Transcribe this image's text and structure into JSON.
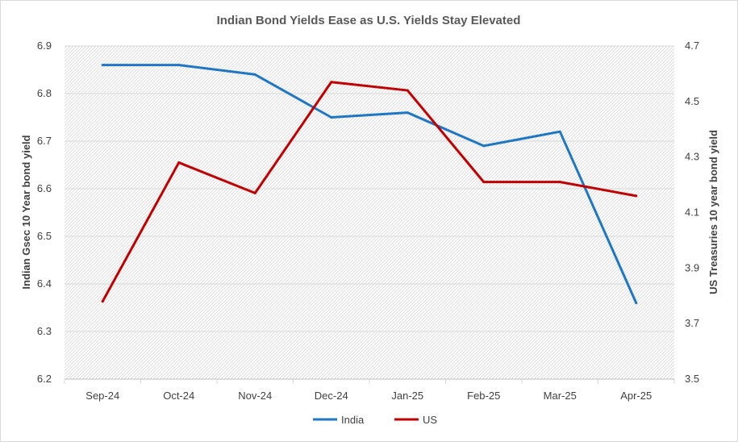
{
  "chart_data": {
    "type": "line",
    "title": "Indian Bond Yields Ease as U.S. Yields Stay Elevated",
    "categories": [
      "Sep-24",
      "Oct-24",
      "Nov-24",
      "Dec-24",
      "Jan-25",
      "Feb-25",
      "Mar-25",
      "Apr-25"
    ],
    "series": [
      {
        "name": "India",
        "axis": "left",
        "color": "#1f77c4",
        "values": [
          6.86,
          6.86,
          6.84,
          6.75,
          6.76,
          6.69,
          6.72,
          6.36
        ]
      },
      {
        "name": "US",
        "axis": "right",
        "color": "#c00000",
        "values": [
          3.78,
          4.28,
          4.17,
          4.57,
          4.54,
          4.21,
          4.21,
          4.16
        ]
      }
    ],
    "ylabel": "Indian Gsec 10 Year bond yield",
    "y2label": "US Treasuries 10 year bond yield",
    "ylim": [
      6.2,
      6.9
    ],
    "yticks": [
      "6.9",
      "6.8",
      "6.7",
      "6.6",
      "6.5",
      "6.4",
      "6.3",
      "6.2"
    ],
    "y2lim": [
      3.5,
      4.7
    ],
    "y2ticks": [
      "4.7",
      "4.5",
      "4.3",
      "4.1",
      "3.9",
      "3.7",
      "3.5"
    ],
    "grid": true,
    "legend_position": "bottom"
  }
}
